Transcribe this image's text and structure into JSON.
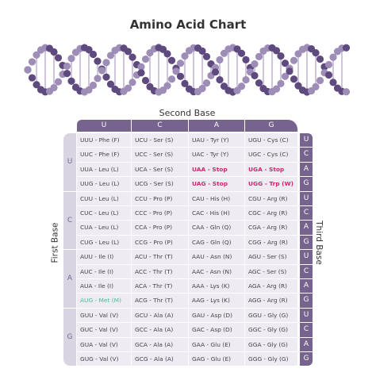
{
  "title": "Amino Acid Chart",
  "second_base": {
    "label": "Second Base",
    "bases": [
      "U",
      "C",
      "A",
      "G"
    ]
  },
  "first_base": {
    "label": "First Base",
    "bases": [
      "U",
      "C",
      "A",
      "G"
    ]
  },
  "third_base": {
    "label": "Third Base",
    "bases": [
      "U",
      "C",
      "A",
      "G",
      "U",
      "C",
      "A",
      "G",
      "U",
      "C",
      "A",
      "G",
      "U",
      "C",
      "A",
      "G"
    ]
  },
  "rows": [
    [
      "UUU - Phe (F)",
      "UCU - Ser (S)",
      "UAU - Tyr (Y)",
      "UGU - Cys (C)"
    ],
    [
      "UUC - Phe (F)",
      "UCC - Ser (S)",
      "UAC - Tyr (Y)",
      "UGC - Cys (C)"
    ],
    [
      "UUA - Leu (L)",
      "UCA - Ser (S)",
      "UAA - Stop",
      "UGA - Stop"
    ],
    [
      "UUG - Leu (L)",
      "UCG - Ser (S)",
      "UAG - Stop",
      "UGG - Trp (W)"
    ],
    [
      "CUU - Leu (L)",
      "CCU - Pro (P)",
      "CAU - His (H)",
      "CGU - Arg (R)"
    ],
    [
      "CUC - Leu (L)",
      "CCC - Pro (P)",
      "CAC - His (H)",
      "CGC - Arg (R)"
    ],
    [
      "CUA - Leu (L)",
      "CCA - Pro (P)",
      "CAA - Gln (Q)",
      "CGA - Arg (R)"
    ],
    [
      "CUG - Leu (L)",
      "CCG - Pro (P)",
      "CAG - Gln (Q)",
      "CGG - Arg (R)"
    ],
    [
      "AUU - Ile (I)",
      "ACU - Thr (T)",
      "AAU - Asn (N)",
      "AGU - Ser (S)"
    ],
    [
      "AUC - Ile (I)",
      "ACC - Thr (T)",
      "AAC - Asn (N)",
      "AGC - Ser (S)"
    ],
    [
      "AUA - Ile (I)",
      "ACA - Thr (T)",
      "AAA - Lys (K)",
      "AGA - Arg (R)"
    ],
    [
      "AUG - Met (M)",
      "ACG - Thr (T)",
      "AAG - Lys (K)",
      "AGG - Arg (R)"
    ],
    [
      "GUU - Val (V)",
      "GCU - Ala (A)",
      "GAU - Asp (D)",
      "GGU - Gly (G)"
    ],
    [
      "GUC - Val (V)",
      "GCC - Ala (A)",
      "GAC - Asp (D)",
      "GGC - Gly (G)"
    ],
    [
      "GUA - Val (V)",
      "GCA - Ala (A)",
      "GAA - Glu (E)",
      "GGA - Gly (G)"
    ],
    [
      "GUG - Val (V)",
      "GCG - Ala (A)",
      "GAG - Glu (E)",
      "GGG - Gly (G)"
    ]
  ]
}
